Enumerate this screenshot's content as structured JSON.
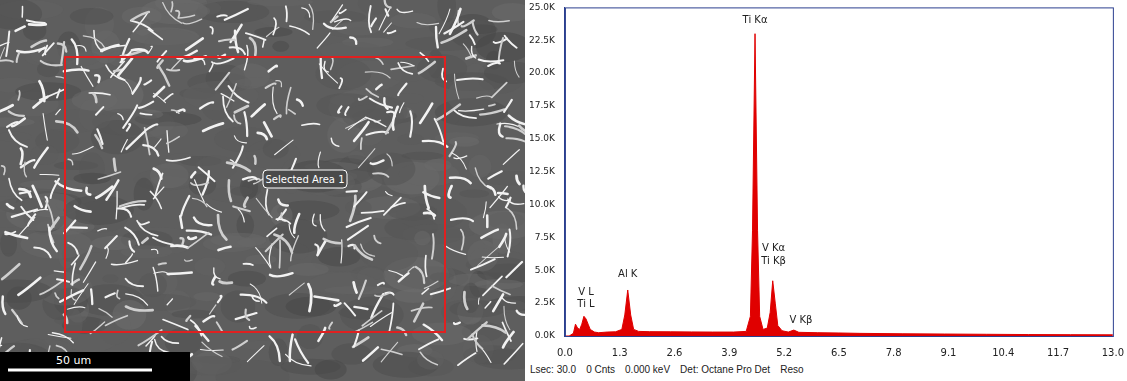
{
  "chart_data": {
    "type": "line",
    "x": [
      0.0,
      0.1,
      0.2,
      0.25,
      0.3,
      0.35,
      0.4,
      0.45,
      0.5,
      0.55,
      0.6,
      0.7,
      0.8,
      1.0,
      1.2,
      1.35,
      1.42,
      1.49,
      1.56,
      1.63,
      1.75,
      2.0,
      2.5,
      3.0,
      3.5,
      4.0,
      4.3,
      4.4,
      4.45,
      4.51,
      4.57,
      4.62,
      4.7,
      4.8,
      4.87,
      4.93,
      4.99,
      5.05,
      5.15,
      5.3,
      5.43,
      5.55,
      6.0,
      6.5,
      7.0,
      8.0,
      9.0,
      10.0,
      11.0,
      12.0,
      13.0
    ],
    "values": [
      0,
      0,
      200,
      900,
      600,
      500,
      900,
      1500,
      1300,
      900,
      500,
      300,
      250,
      300,
      320,
      500,
      1600,
      3500,
      1600,
      500,
      350,
      330,
      320,
      310,
      300,
      300,
      350,
      1500,
      8000,
      23000,
      8000,
      1500,
      500,
      600,
      1800,
      4200,
      2500,
      800,
      400,
      300,
      450,
      280,
      250,
      230,
      200,
      170,
      150,
      130,
      110,
      100,
      90
    ],
    "color": "#e00000",
    "xlim": [
      0,
      13
    ],
    "xticks": [
      {
        "value": 0,
        "label": "0.0"
      },
      1.3,
      2.6,
      3.9,
      5.2,
      6.5,
      7.8,
      9.1,
      10.4,
      11.7,
      {
        "value": 13,
        "label": "13.0"
      }
    ],
    "ylim": [
      0,
      25000
    ],
    "yticks": [
      {
        "value": 0,
        "label": "0.0K"
      },
      {
        "value": 2500,
        "label": "2.5K"
      },
      {
        "value": 5000,
        "label": "5.0K"
      },
      {
        "value": 7500,
        "label": "7.5K"
      },
      {
        "value": 10000,
        "label": "10.0K"
      },
      {
        "value": 12500,
        "label": "12.5K"
      },
      {
        "value": 15000,
        "label": "15.0K"
      },
      {
        "value": 17500,
        "label": "17.5K"
      },
      {
        "value": 20000,
        "label": "20.0K"
      },
      {
        "value": 22500,
        "label": "22.5K"
      },
      {
        "value": 25000,
        "label": "25.0K"
      }
    ],
    "grid": false,
    "annotations": [
      {
        "text": "Ti Kα",
        "x": 4.51,
        "y": 23600
      },
      {
        "text": "Al K",
        "x": 1.49,
        "y": 4300
      },
      {
        "text": "V L",
        "x": 0.5,
        "y": 2900
      },
      {
        "text": "Ti L",
        "x": 0.5,
        "y": 2000
      },
      {
        "text": "V Kα",
        "x": 4.95,
        "y": 6300
      },
      {
        "text": "Ti Kβ",
        "x": 4.95,
        "y": 5300
      },
      {
        "text": "V Kβ",
        "x": 5.6,
        "y": 800
      }
    ],
    "footer": [
      "Lsec: 30.0",
      "0 Cnts",
      "0.000 keV",
      "Det: Octane Pro Det",
      "Reso"
    ]
  },
  "micrograph": {
    "selection_label": "Selected Area 1",
    "scale_bar": "50 um"
  }
}
